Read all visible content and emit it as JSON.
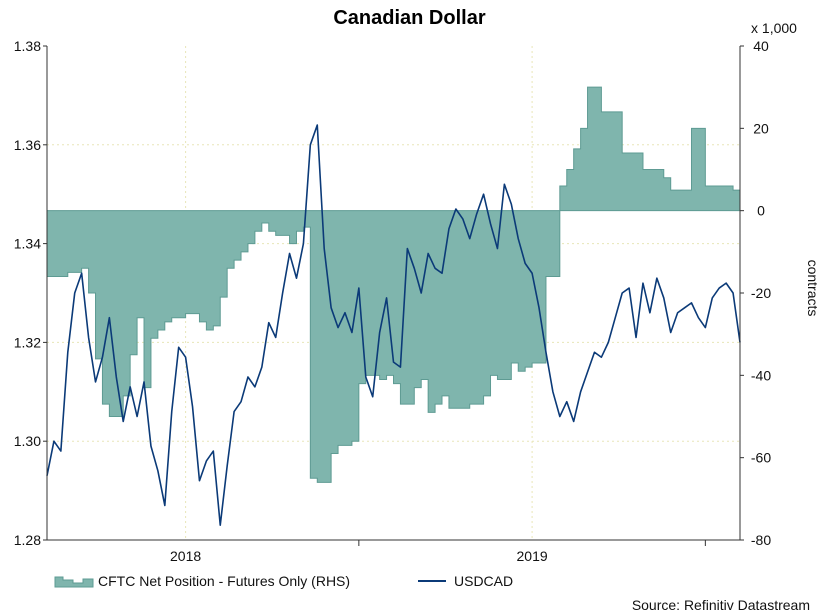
{
  "chart_data": {
    "type": "line",
    "title": "Canadian Dollar",
    "xlabel": "",
    "ylabel_left": "",
    "ylabel_right": "contracts",
    "right_axis_multiplier_label": "x 1,000",
    "x_range": [
      2017.6,
      2019.6
    ],
    "ylim_left": [
      1.28,
      1.38
    ],
    "ylim_right": [
      -80,
      40
    ],
    "left_ticks": [
      "1.28",
      "1.30",
      "1.32",
      "1.34",
      "1.36",
      "1.38"
    ],
    "right_ticks": [
      "-80",
      "-60",
      "-40",
      "-20",
      "0",
      "20",
      "40"
    ],
    "left_tick_values": [
      1.28,
      1.3,
      1.32,
      1.34,
      1.36,
      1.38
    ],
    "right_tick_values": [
      -80,
      -60,
      -40,
      -20,
      0,
      20,
      40
    ],
    "x_ticks": [
      {
        "label": "2018",
        "value": 2018.0
      },
      {
        "label": "2019",
        "value": 2019.0
      }
    ],
    "year_boundaries": [
      2018.5,
      2019.5
    ],
    "grid": true,
    "legend_position": "bottom-left",
    "series": [
      {
        "name": "CFTC Net Position - Futures Only (RHS)",
        "axis": "right",
        "style": "area",
        "color": "#7fb5ad",
        "edge_color": "#5e9b93",
        "x": [
          2017.6,
          2017.62,
          2017.64,
          2017.66,
          2017.68,
          2017.7,
          2017.72,
          2017.74,
          2017.76,
          2017.78,
          2017.8,
          2017.82,
          2017.84,
          2017.86,
          2017.88,
          2017.9,
          2017.92,
          2017.94,
          2017.96,
          2017.98,
          2018.0,
          2018.02,
          2018.04,
          2018.06,
          2018.08,
          2018.1,
          2018.12,
          2018.14,
          2018.16,
          2018.18,
          2018.2,
          2018.22,
          2018.24,
          2018.26,
          2018.28,
          2018.3,
          2018.32,
          2018.34,
          2018.36,
          2018.38,
          2018.4,
          2018.42,
          2018.44,
          2018.46,
          2018.48,
          2018.5,
          2018.52,
          2018.54,
          2018.56,
          2018.58,
          2018.6,
          2018.62,
          2018.64,
          2018.66,
          2018.68,
          2018.7,
          2018.72,
          2018.74,
          2018.76,
          2018.78,
          2018.8,
          2018.82,
          2018.84,
          2018.86,
          2018.88,
          2018.9,
          2018.92,
          2018.94,
          2018.96,
          2018.98,
          2019.0,
          2019.02,
          2019.04,
          2019.06,
          2019.08,
          2019.1,
          2019.12,
          2019.14,
          2019.16,
          2019.18,
          2019.2,
          2019.22,
          2019.24,
          2019.26,
          2019.28,
          2019.3,
          2019.32,
          2019.34,
          2019.36,
          2019.38,
          2019.4,
          2019.42,
          2019.44,
          2019.46,
          2019.48,
          2019.5,
          2019.52,
          2019.54,
          2019.56,
          2019.58,
          2019.6
        ],
        "values": [
          -16,
          -16,
          -16,
          -15,
          -15,
          -14,
          -20,
          -36,
          -47,
          -50,
          -50,
          -45,
          -35,
          -26,
          -43,
          -31,
          -29,
          -27,
          -26,
          -26,
          -25,
          -25,
          -27,
          -29,
          -28,
          -21,
          -14,
          -12,
          -10,
          -8,
          -5,
          -3,
          -5,
          -6,
          -6,
          -8,
          -5,
          -4,
          -65,
          -66,
          -66,
          -59,
          -57,
          -57,
          -56,
          -42,
          -40,
          -40,
          -41,
          -40,
          -42,
          -47,
          -47,
          -43,
          -41,
          -49,
          -47,
          -45,
          -48,
          -48,
          -48,
          -47,
          -47,
          -45,
          -40,
          -41,
          -41,
          -37,
          -39,
          -38,
          -37,
          -37,
          -16,
          -16,
          6,
          10,
          15,
          20,
          30,
          30,
          24,
          24,
          24,
          14,
          14,
          14,
          10,
          10,
          10,
          8,
          5,
          5,
          5,
          20,
          20,
          6,
          6,
          6,
          6,
          5,
          5
        ]
      },
      {
        "name": "USDCAD",
        "axis": "left",
        "style": "line",
        "color": "#0b3a78",
        "x": [
          2017.6,
          2017.62,
          2017.64,
          2017.66,
          2017.68,
          2017.7,
          2017.72,
          2017.74,
          2017.76,
          2017.78,
          2017.8,
          2017.82,
          2017.84,
          2017.86,
          2017.88,
          2017.9,
          2017.92,
          2017.94,
          2017.96,
          2017.98,
          2018.0,
          2018.02,
          2018.04,
          2018.06,
          2018.08,
          2018.1,
          2018.12,
          2018.14,
          2018.16,
          2018.18,
          2018.2,
          2018.22,
          2018.24,
          2018.26,
          2018.28,
          2018.3,
          2018.32,
          2018.34,
          2018.36,
          2018.38,
          2018.4,
          2018.42,
          2018.44,
          2018.46,
          2018.48,
          2018.5,
          2018.52,
          2018.54,
          2018.56,
          2018.58,
          2018.6,
          2018.62,
          2018.64,
          2018.66,
          2018.68,
          2018.7,
          2018.72,
          2018.74,
          2018.76,
          2018.78,
          2018.8,
          2018.82,
          2018.84,
          2018.86,
          2018.88,
          2018.9,
          2018.92,
          2018.94,
          2018.96,
          2018.98,
          2019.0,
          2019.02,
          2019.04,
          2019.06,
          2019.08,
          2019.1,
          2019.12,
          2019.14,
          2019.16,
          2019.18,
          2019.2,
          2019.22,
          2019.24,
          2019.26,
          2019.28,
          2019.3,
          2019.32,
          2019.34,
          2019.36,
          2019.38,
          2019.4,
          2019.42,
          2019.44,
          2019.46,
          2019.48,
          2019.5,
          2019.52,
          2019.54,
          2019.56,
          2019.58,
          2019.6
        ],
        "values": [
          1.293,
          1.3,
          1.298,
          1.318,
          1.33,
          1.334,
          1.321,
          1.312,
          1.317,
          1.325,
          1.313,
          1.304,
          1.311,
          1.305,
          1.312,
          1.299,
          1.294,
          1.287,
          1.306,
          1.319,
          1.317,
          1.307,
          1.292,
          1.296,
          1.298,
          1.283,
          1.295,
          1.306,
          1.308,
          1.313,
          1.311,
          1.315,
          1.324,
          1.321,
          1.33,
          1.338,
          1.333,
          1.34,
          1.36,
          1.364,
          1.339,
          1.327,
          1.323,
          1.326,
          1.322,
          1.331,
          1.313,
          1.309,
          1.322,
          1.329,
          1.316,
          1.315,
          1.339,
          1.335,
          1.33,
          1.338,
          1.335,
          1.334,
          1.343,
          1.347,
          1.345,
          1.341,
          1.346,
          1.35,
          1.344,
          1.339,
          1.352,
          1.348,
          1.341,
          1.336,
          1.334,
          1.327,
          1.318,
          1.31,
          1.305,
          1.308,
          1.304,
          1.31,
          1.314,
          1.318,
          1.317,
          1.32,
          1.325,
          1.33,
          1.331,
          1.321,
          1.332,
          1.326,
          1.333,
          1.329,
          1.322,
          1.326,
          1.327,
          1.328,
          1.325,
          1.323,
          1.329,
          1.331,
          1.332,
          1.33,
          1.32
        ]
      }
    ],
    "legend": [
      {
        "label": "CFTC Net Position - Futures Only (RHS)",
        "style": "area"
      },
      {
        "label": "USDCAD",
        "style": "line"
      }
    ],
    "source": "Source: Refinitiv Datastream"
  }
}
